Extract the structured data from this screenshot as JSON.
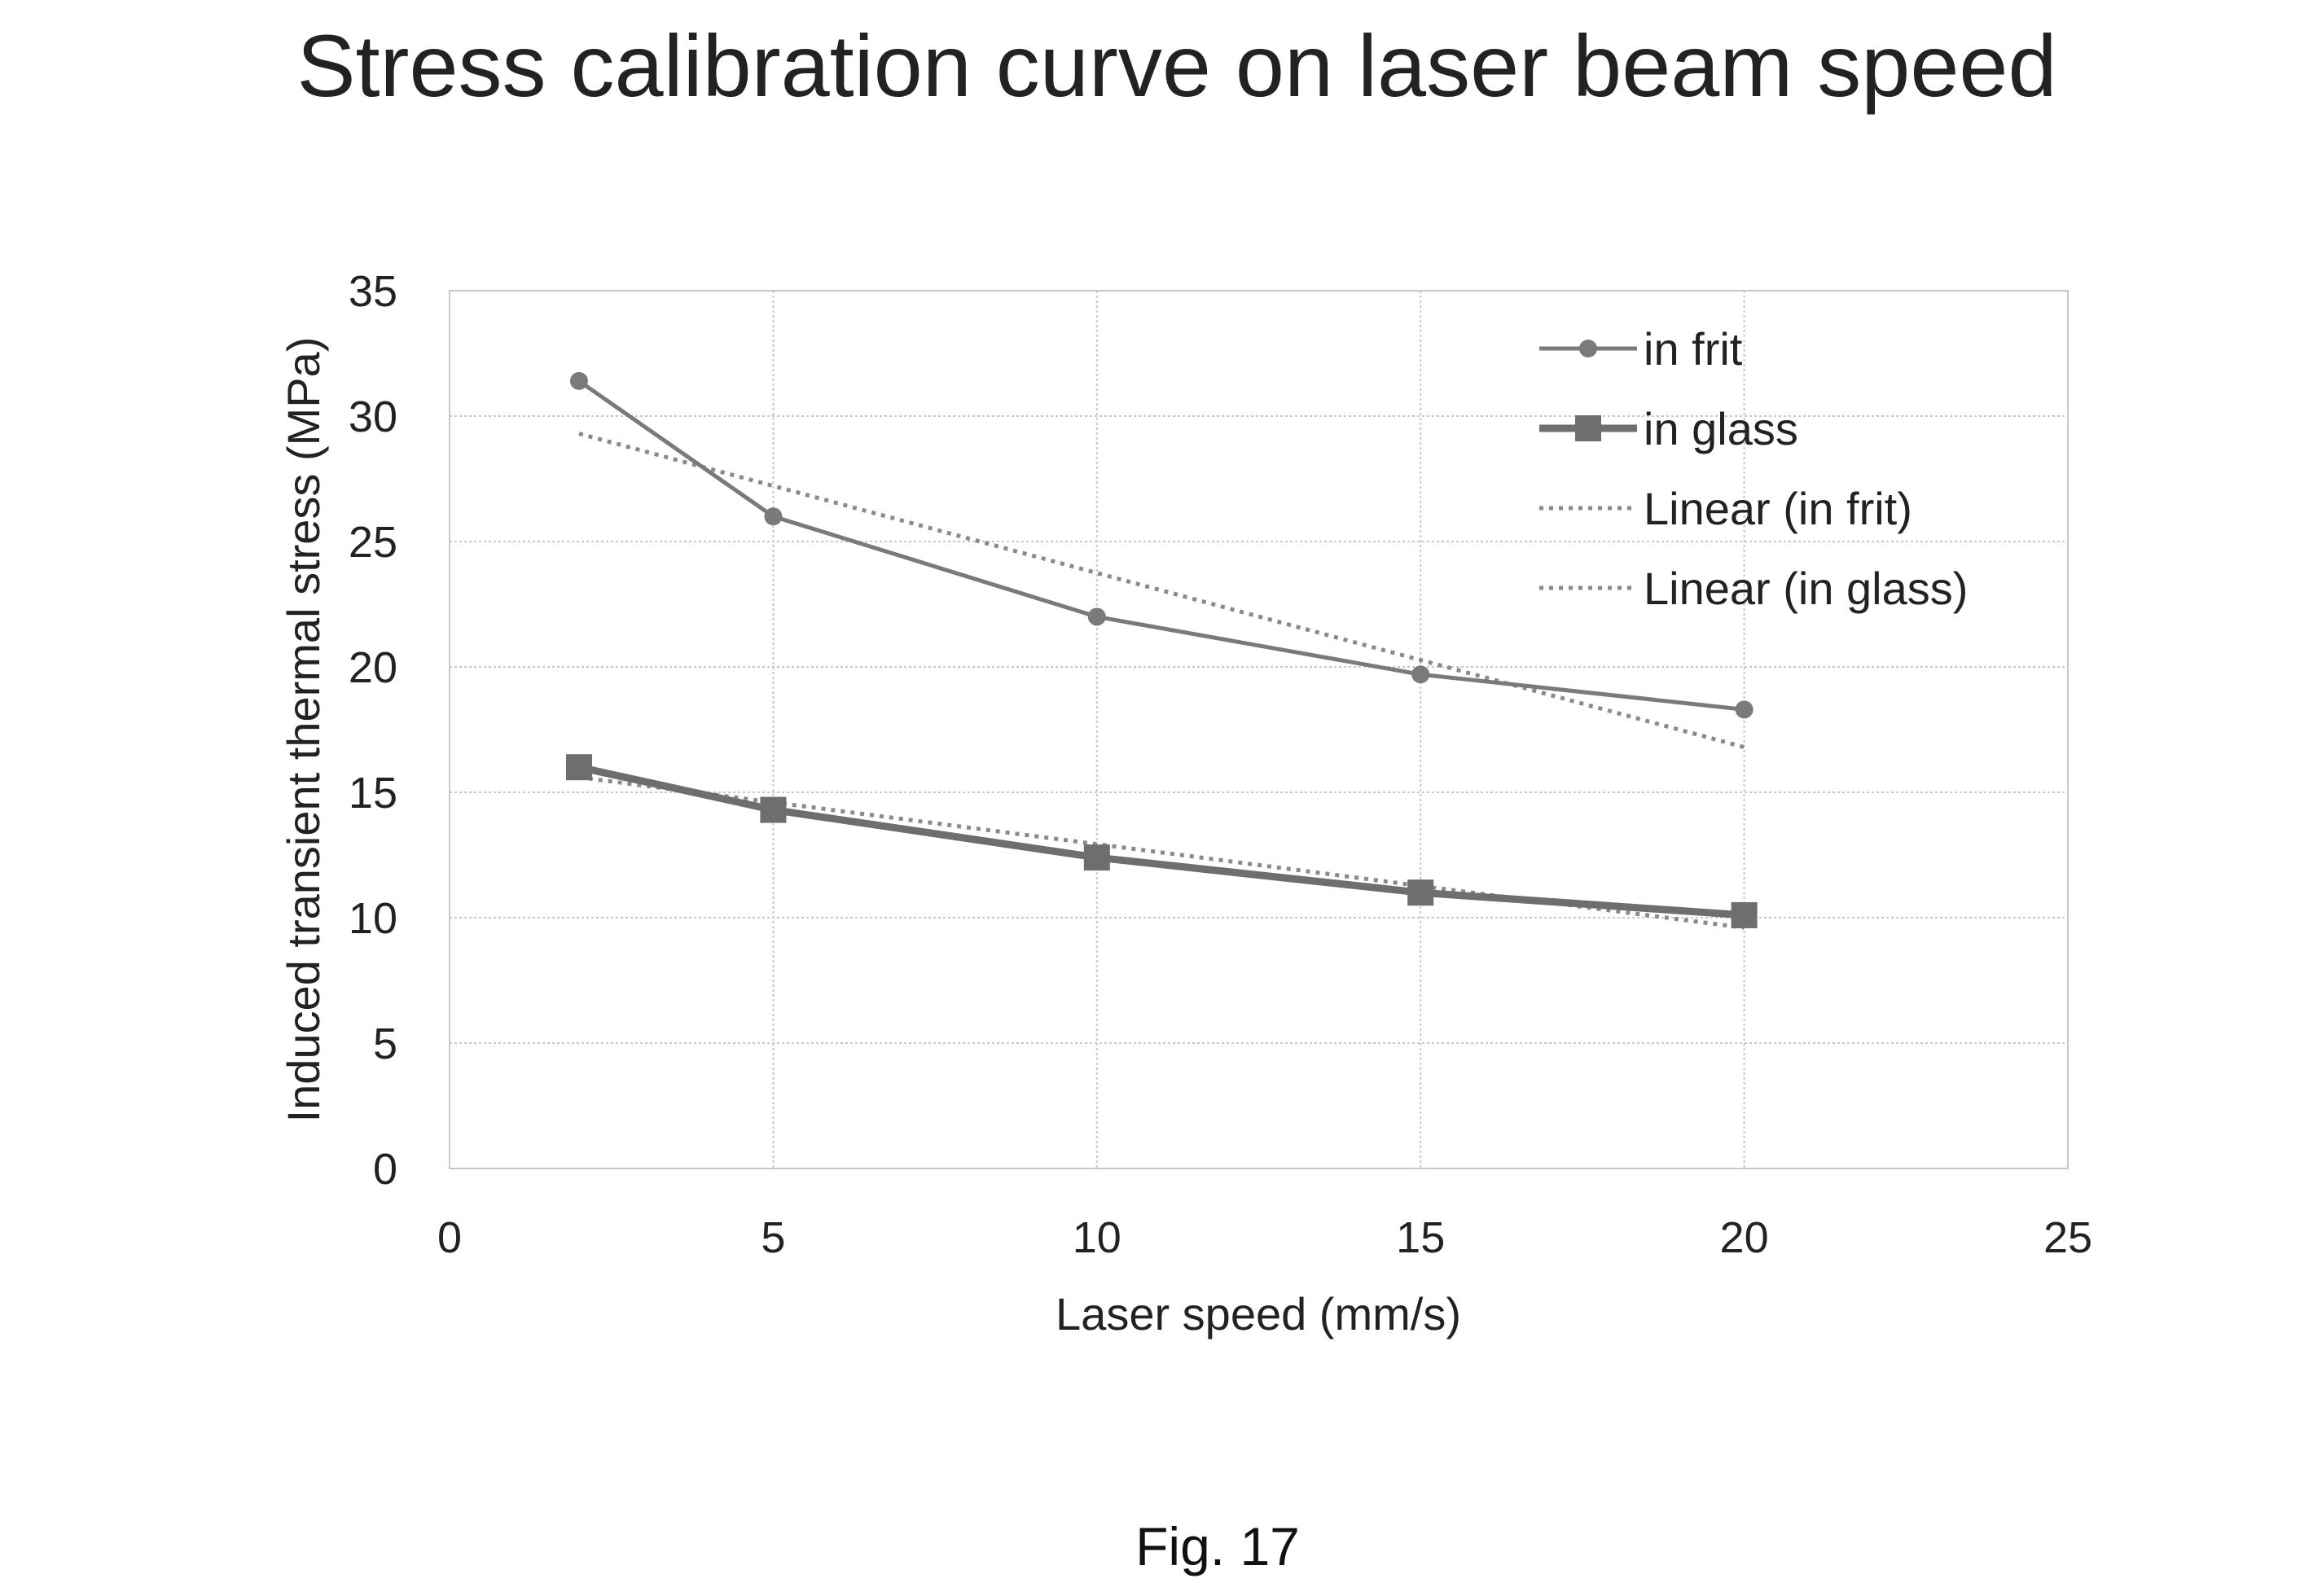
{
  "chart_data": {
    "type": "line",
    "title": "Stress calibration curve on laser beam speed",
    "xlabel": "Laser speed (mm/s)",
    "ylabel": "Induced transient thermal stress (MPa)",
    "xlim": [
      0,
      25
    ],
    "ylim": [
      0,
      35
    ],
    "xticks": [
      0,
      5,
      10,
      15,
      20,
      25
    ],
    "yticks": [
      0,
      5,
      10,
      15,
      20,
      25,
      30,
      35
    ],
    "grid": true,
    "legend_position": "top-right",
    "series": [
      {
        "name": "in frit",
        "marker": "circle",
        "color": "#7a7a7a",
        "x": [
          2,
          5,
          10,
          15,
          20
        ],
        "y": [
          31.4,
          26.0,
          22.0,
          19.7,
          18.3
        ]
      },
      {
        "name": "in glass",
        "marker": "square",
        "color": "#6e6e6e",
        "x": [
          2,
          5,
          10,
          15,
          20
        ],
        "y": [
          16.0,
          14.3,
          12.4,
          11.0,
          10.1
        ]
      }
    ],
    "trendlines": [
      {
        "name": "Linear (in frit)",
        "of": "in frit",
        "style": "dotted",
        "color": "#8a8a8a",
        "x": [
          2,
          20
        ],
        "y": [
          29.3,
          16.8
        ]
      },
      {
        "name": "Linear (in glass)",
        "of": "in glass",
        "style": "dotted",
        "color": "#8a8a8a",
        "x": [
          2,
          20
        ],
        "y": [
          15.6,
          9.6
        ]
      }
    ]
  },
  "caption": "Fig. 17"
}
